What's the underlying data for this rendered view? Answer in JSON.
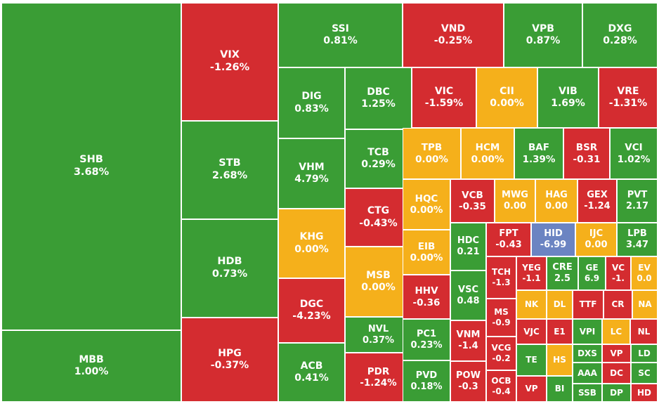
{
  "chart_data": {
    "type": "treemap",
    "colors": {
      "up": "#3a9d35",
      "down": "#d42c30",
      "flat": "#f5b01b",
      "floor": "#6b84c2"
    },
    "tiles": [
      {
        "ticker": "SHB",
        "value": "3.68%",
        "status": "up"
      },
      {
        "ticker": "MBB",
        "value": "1.00%",
        "status": "up"
      },
      {
        "ticker": "VIX",
        "value": "-1.26%",
        "status": "down"
      },
      {
        "ticker": "STB",
        "value": "2.68%",
        "status": "up"
      },
      {
        "ticker": "HDB",
        "value": "0.73%",
        "status": "up"
      },
      {
        "ticker": "HPG",
        "value": "-0.37%",
        "status": "down"
      },
      {
        "ticker": "SSI",
        "value": "0.81%",
        "status": "up"
      },
      {
        "ticker": "VND",
        "value": "-0.25%",
        "status": "down"
      },
      {
        "ticker": "VPB",
        "value": "0.87%",
        "status": "up"
      },
      {
        "ticker": "DXG",
        "value": "0.28%",
        "status": "up"
      },
      {
        "ticker": "DIG",
        "value": "0.83%",
        "status": "up"
      },
      {
        "ticker": "VHM",
        "value": "4.79%",
        "status": "up"
      },
      {
        "ticker": "KHG",
        "value": "0.00%",
        "status": "flat"
      },
      {
        "ticker": "DGC",
        "value": "-4.23%",
        "status": "down"
      },
      {
        "ticker": "ACB",
        "value": "0.41%",
        "status": "up"
      },
      {
        "ticker": "DBC",
        "value": "1.25%",
        "status": "up"
      },
      {
        "ticker": "TCB",
        "value": "0.29%",
        "status": "up"
      },
      {
        "ticker": "CTG",
        "value": "-0.43%",
        "status": "down"
      },
      {
        "ticker": "MSB",
        "value": "0.00%",
        "status": "flat"
      },
      {
        "ticker": "NVL",
        "value": "0.37%",
        "status": "up"
      },
      {
        "ticker": "PDR",
        "value": "-1.24%",
        "status": "down"
      },
      {
        "ticker": "VIC",
        "value": "-1.59%",
        "status": "down"
      },
      {
        "ticker": "CII",
        "value": "0.00%",
        "status": "flat"
      },
      {
        "ticker": "VIB",
        "value": "1.69%",
        "status": "up"
      },
      {
        "ticker": "VRE",
        "value": "-1.31%",
        "status": "down"
      },
      {
        "ticker": "TPB",
        "value": "0.00%",
        "status": "flat"
      },
      {
        "ticker": "HCM",
        "value": "0.00%",
        "status": "flat"
      },
      {
        "ticker": "BAF",
        "value": "1.39%",
        "status": "up"
      },
      {
        "ticker": "BSR",
        "value": "-0.31",
        "status": "down"
      },
      {
        "ticker": "VCI",
        "value": "1.02%",
        "status": "up"
      },
      {
        "ticker": "HQC",
        "value": "0.00%",
        "status": "flat"
      },
      {
        "ticker": "EIB",
        "value": "0.00%",
        "status": "flat"
      },
      {
        "ticker": "HHV",
        "value": "-0.36",
        "status": "down"
      },
      {
        "ticker": "PC1",
        "value": "0.23%",
        "status": "up"
      },
      {
        "ticker": "PVD",
        "value": "0.18%",
        "status": "up"
      },
      {
        "ticker": "VCB",
        "value": "-0.35",
        "status": "down"
      },
      {
        "ticker": "MWG",
        "value": "0.00",
        "status": "flat"
      },
      {
        "ticker": "HAG",
        "value": "0.00",
        "status": "flat"
      },
      {
        "ticker": "GEX",
        "value": "-1.24",
        "status": "down"
      },
      {
        "ticker": "PVT",
        "value": "2.17",
        "status": "up"
      },
      {
        "ticker": "HDC",
        "value": "0.21",
        "status": "up"
      },
      {
        "ticker": "VSC",
        "value": "0.48",
        "status": "up"
      },
      {
        "ticker": "VNM",
        "value": "-1.4",
        "status": "down"
      },
      {
        "ticker": "POW",
        "value": "-0.3",
        "status": "down"
      },
      {
        "ticker": "FPT",
        "value": "-0.43",
        "status": "down"
      },
      {
        "ticker": "HID",
        "value": "-6.99",
        "status": "floor"
      },
      {
        "ticker": "IJC",
        "value": "0.00",
        "status": "flat"
      },
      {
        "ticker": "LPB",
        "value": "3.47",
        "status": "up"
      },
      {
        "ticker": "TCH",
        "value": "-1.3",
        "status": "down"
      },
      {
        "ticker": "MS",
        "value": "-0.9",
        "status": "down"
      },
      {
        "ticker": "VCG",
        "value": "-0.2",
        "status": "down"
      },
      {
        "ticker": "OCB",
        "value": "-0.4",
        "status": "down"
      },
      {
        "ticker": "YEG",
        "value": "-1.1",
        "status": "down"
      },
      {
        "ticker": "CRE",
        "value": "2.5",
        "status": "up"
      },
      {
        "ticker": "GE",
        "value": "6.9",
        "status": "up"
      },
      {
        "ticker": "VC",
        "value": "-1.",
        "status": "down"
      },
      {
        "ticker": "EV",
        "value": "0.0",
        "status": "flat"
      },
      {
        "ticker": "NK",
        "value": "",
        "status": "flat"
      },
      {
        "ticker": "DL",
        "value": "",
        "status": "flat"
      },
      {
        "ticker": "TTF",
        "value": "",
        "status": "down"
      },
      {
        "ticker": "CR",
        "value": "",
        "status": "down"
      },
      {
        "ticker": "NA",
        "value": "",
        "status": "flat"
      },
      {
        "ticker": "VJC",
        "value": "",
        "status": "down"
      },
      {
        "ticker": "E1",
        "value": "",
        "status": "down"
      },
      {
        "ticker": "VPI",
        "value": "",
        "status": "up"
      },
      {
        "ticker": "LC",
        "value": "",
        "status": "flat"
      },
      {
        "ticker": "NL",
        "value": "",
        "status": "down"
      },
      {
        "ticker": "TE",
        "value": "",
        "status": "up"
      },
      {
        "ticker": "HS",
        "value": "",
        "status": "flat"
      },
      {
        "ticker": "DXS",
        "value": "",
        "status": "up"
      },
      {
        "ticker": "VP",
        "value": "",
        "status": "down"
      },
      {
        "ticker": "LD",
        "value": "",
        "status": "up"
      },
      {
        "ticker": "VP",
        "value": "",
        "status": "down"
      },
      {
        "ticker": "BI",
        "value": "",
        "status": "up"
      },
      {
        "ticker": "AAA",
        "value": "",
        "status": "up"
      },
      {
        "ticker": "DC",
        "value": "",
        "status": "down"
      },
      {
        "ticker": "SC",
        "value": "",
        "status": "up"
      },
      {
        "ticker": "SSB",
        "value": "",
        "status": "up"
      },
      {
        "ticker": "DP",
        "value": "",
        "status": "up"
      },
      {
        "ticker": "HD",
        "value": "",
        "status": "down"
      }
    ]
  }
}
